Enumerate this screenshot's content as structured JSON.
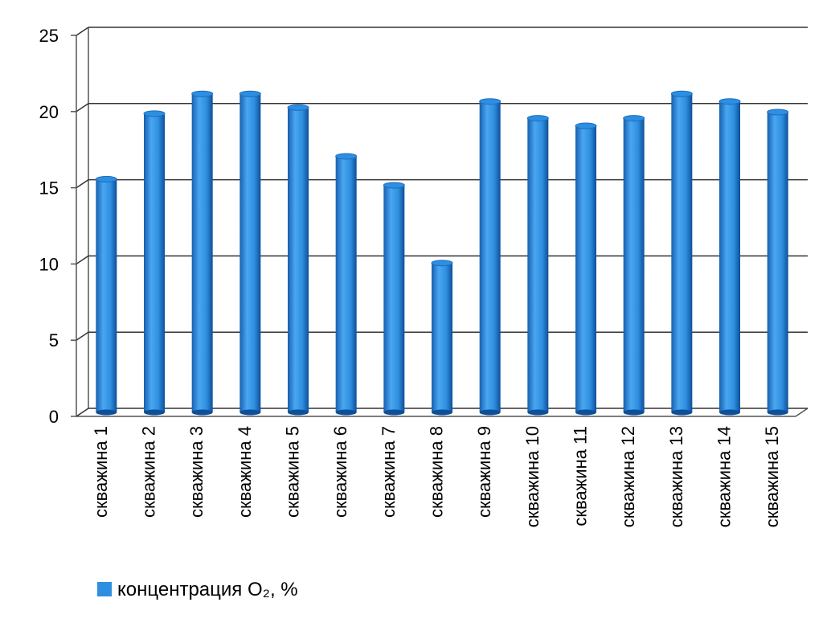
{
  "chart_data": {
    "type": "bar",
    "categories": [
      "скважина 1",
      "скважина 2",
      "скважина 3",
      "скважина 4",
      "скважина 5",
      "скважина 6",
      "скважина 7",
      "скважина 8",
      "скважина 9",
      "скважина 10",
      "скважина 11",
      "скважина 12",
      "скважина 13",
      "скважина 14",
      "скважина 15"
    ],
    "series": [
      {
        "name": "концентрация O₂, %",
        "color": "#2e8fe0",
        "values": [
          15.3,
          19.6,
          20.9,
          20.9,
          20.0,
          16.8,
          14.9,
          9.8,
          20.4,
          19.3,
          18.8,
          19.3,
          20.9,
          20.4,
          19.7
        ]
      }
    ],
    "ylim": [
      0,
      25
    ],
    "yticks": [
      0,
      5,
      10,
      15,
      20,
      25
    ],
    "grid": true,
    "legend": "bottom-left"
  }
}
